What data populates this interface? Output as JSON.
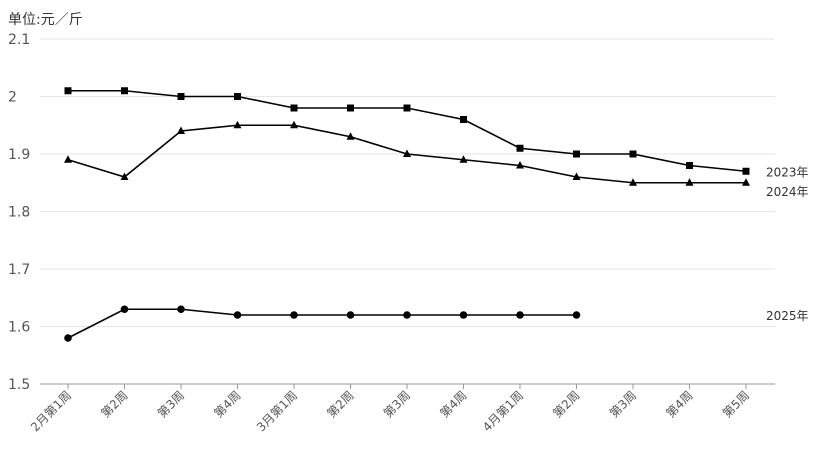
{
  "unit_label": "单位:元／斤",
  "chart_data": {
    "type": "line",
    "categories": [
      "2月第1周",
      "第2周",
      "第3周",
      "第4周",
      "3月第1周",
      "第2周",
      "第3周",
      "第4周",
      "4月第1周",
      "第2周",
      "第3周",
      "第4周",
      "第5周"
    ],
    "ylim": [
      1.5,
      2.1
    ],
    "yticks": [
      1.5,
      1.6,
      1.7,
      1.8,
      1.9,
      2,
      2.1
    ],
    "ytick_labels": [
      "1.5",
      "1.6",
      "1.7",
      "1.8",
      "1.9",
      "2",
      "2.1"
    ],
    "grid": true,
    "legend": "right-end-labels",
    "series": [
      {
        "name": "2023年",
        "marker": "square",
        "color": "#000000",
        "values": [
          2.01,
          2.01,
          2.0,
          2.0,
          1.98,
          1.98,
          1.98,
          1.96,
          1.91,
          1.9,
          1.9,
          1.88,
          1.87
        ]
      },
      {
        "name": "2024年",
        "marker": "triangle",
        "color": "#000000",
        "values": [
          1.89,
          1.86,
          1.94,
          1.95,
          1.95,
          1.93,
          1.9,
          1.89,
          1.88,
          1.86,
          1.85,
          1.85,
          1.85
        ]
      },
      {
        "name": "2025年",
        "marker": "circle",
        "color": "#000000",
        "values": [
          1.58,
          1.63,
          1.63,
          1.62,
          1.62,
          1.62,
          1.62,
          1.62,
          1.62,
          1.62,
          null,
          null,
          null
        ]
      }
    ]
  }
}
